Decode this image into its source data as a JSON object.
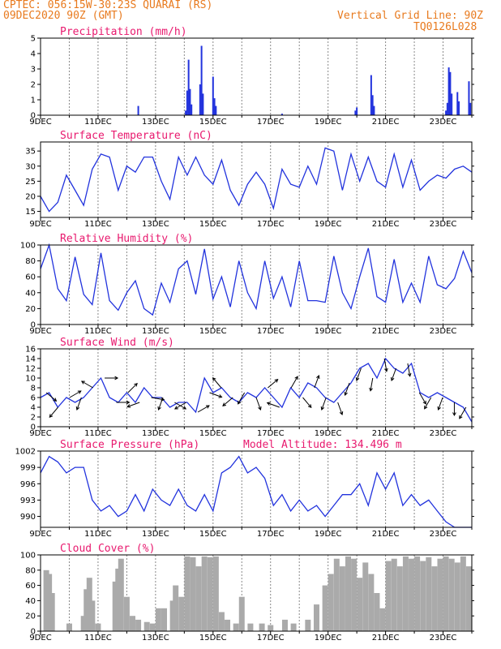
{
  "header": {
    "line1": "CPTEC:   056:15W-30:23S   QUARAI (RS)",
    "line2": "09DEC2020 90Z (GMT)",
    "grid_note": "Vertical Grid Line: 90Z",
    "code": "TQ0126L028"
  },
  "colors": {
    "header": "#e87a1e",
    "title": "#e8196e",
    "series": "#2233dd",
    "cloud": "#aaaaaa",
    "grid": "#888888"
  },
  "x_labels": [
    "9DEC",
    "11DEC",
    "13DEC",
    "15DEC",
    "17DEC",
    "19DEC",
    "21DEC",
    "23DEC"
  ],
  "chart_data": [
    {
      "type": "bar",
      "title": "Precipitation (mm/h)",
      "ylim": [
        0,
        5
      ],
      "yticks": [
        0,
        1,
        2,
        3,
        4,
        5
      ],
      "x_unit": "days since 9DEC",
      "xlim": [
        0,
        15
      ],
      "values": [
        [
          3.4,
          0.6
        ],
        [
          5.05,
          0.3
        ],
        [
          5.1,
          1.6
        ],
        [
          5.15,
          3.6
        ],
        [
          5.2,
          1.7
        ],
        [
          5.25,
          0.7
        ],
        [
          5.55,
          2.0
        ],
        [
          5.6,
          4.5
        ],
        [
          5.65,
          1.4
        ],
        [
          6.0,
          2.5
        ],
        [
          6.05,
          1.1
        ],
        [
          6.1,
          0.6
        ],
        [
          8.4,
          0.1
        ],
        [
          10.95,
          0.3
        ],
        [
          11.0,
          0.5
        ],
        [
          11.5,
          2.6
        ],
        [
          11.55,
          1.3
        ],
        [
          11.6,
          0.6
        ],
        [
          14.1,
          0.3
        ],
        [
          14.15,
          0.8
        ],
        [
          14.2,
          3.1
        ],
        [
          14.25,
          2.8
        ],
        [
          14.3,
          1.4
        ],
        [
          14.5,
          1.5
        ],
        [
          14.55,
          0.9
        ],
        [
          14.9,
          2.2
        ],
        [
          14.95,
          0.8
        ]
      ]
    },
    {
      "type": "line",
      "title": "Surface Temperature (nC)",
      "ylim": [
        13,
        38
      ],
      "yticks": [
        15,
        20,
        25,
        30,
        35
      ],
      "x": [
        0,
        0.3,
        0.6,
        0.9,
        1.2,
        1.5,
        1.8,
        2.1,
        2.4,
        2.7,
        3.0,
        3.3,
        3.6,
        3.9,
        4.2,
        4.5,
        4.8,
        5.1,
        5.4,
        5.7,
        6.0,
        6.3,
        6.6,
        6.9,
        7.2,
        7.5,
        7.8,
        8.1,
        8.4,
        8.7,
        9.0,
        9.3,
        9.6,
        9.9,
        10.2,
        10.5,
        10.8,
        11.1,
        11.4,
        11.7,
        12.0,
        12.3,
        12.6,
        12.9,
        13.2,
        13.5,
        13.8,
        14.1,
        14.4,
        14.7,
        15.0
      ],
      "values": [
        20,
        15,
        18,
        27,
        22,
        17,
        29,
        34,
        33,
        22,
        30,
        28,
        33,
        33,
        25,
        19,
        33,
        27,
        33,
        27,
        24,
        32,
        22,
        17,
        24,
        28,
        24,
        16,
        29,
        24,
        23,
        30,
        24,
        36,
        35,
        22,
        34,
        25,
        33,
        25,
        23,
        34,
        23,
        32,
        22,
        25,
        27,
        26,
        29,
        30,
        28
      ]
    },
    {
      "type": "line",
      "title": "Relative Humidity (%)",
      "ylim": [
        0,
        100
      ],
      "yticks": [
        0,
        20,
        40,
        60,
        80,
        100
      ],
      "x": [
        0,
        0.3,
        0.6,
        0.9,
        1.2,
        1.5,
        1.8,
        2.1,
        2.4,
        2.7,
        3.0,
        3.3,
        3.6,
        3.9,
        4.2,
        4.5,
        4.8,
        5.1,
        5.4,
        5.7,
        6.0,
        6.3,
        6.6,
        6.9,
        7.2,
        7.5,
        7.8,
        8.1,
        8.4,
        8.7,
        9.0,
        9.3,
        9.6,
        9.9,
        10.2,
        10.5,
        10.8,
        11.1,
        11.4,
        11.7,
        12.0,
        12.3,
        12.6,
        12.9,
        13.2,
        13.5,
        13.8,
        14.1,
        14.4,
        14.7,
        15.0
      ],
      "values": [
        70,
        100,
        45,
        30,
        85,
        38,
        25,
        90,
        30,
        18,
        40,
        55,
        20,
        12,
        52,
        28,
        70,
        80,
        38,
        95,
        32,
        60,
        22,
        80,
        40,
        20,
        80,
        33,
        60,
        22,
        80,
        30,
        30,
        28,
        86,
        40,
        20,
        60,
        96,
        35,
        28,
        82,
        28,
        52,
        28,
        86,
        50,
        45,
        58,
        92,
        65
      ]
    },
    {
      "type": "line",
      "title": "Surface Wind (m/s)",
      "ylim": [
        0,
        16
      ],
      "yticks": [
        0,
        2,
        4,
        6,
        8,
        10,
        12,
        14,
        16
      ],
      "x": [
        0,
        0.3,
        0.6,
        0.9,
        1.2,
        1.5,
        1.8,
        2.1,
        2.4,
        2.7,
        3.0,
        3.3,
        3.6,
        3.9,
        4.2,
        4.5,
        4.8,
        5.1,
        5.4,
        5.7,
        6.0,
        6.3,
        6.6,
        6.9,
        7.2,
        7.5,
        7.8,
        8.1,
        8.4,
        8.7,
        9.0,
        9.3,
        9.6,
        9.9,
        10.2,
        10.5,
        10.8,
        11.1,
        11.4,
        11.7,
        12.0,
        12.3,
        12.6,
        12.9,
        13.2,
        13.5,
        13.8,
        14.1,
        14.4,
        14.7,
        15.0
      ],
      "values": [
        6,
        7,
        4,
        6,
        5,
        6,
        8,
        10,
        6,
        5,
        7,
        5,
        8,
        6,
        6,
        4,
        5,
        5,
        3,
        10,
        7,
        8,
        6,
        5,
        7,
        6,
        8,
        6,
        4,
        8,
        6,
        9,
        8,
        6,
        5,
        7,
        9,
        12,
        13,
        10,
        14,
        12,
        11,
        13,
        7,
        6,
        7,
        6,
        5,
        4,
        1
      ],
      "arrow_dirs_deg": [
        130,
        220,
        60,
        200,
        300,
        90,
        90,
        45,
        250,
        100,
        200,
        120,
        240,
        60,
        110,
        320,
        230,
        210,
        160,
        50,
        290,
        30,
        140,
        20,
        200,
        160,
        200,
        200,
        190,
        170,
        200,
        170,
        150,
        210,
        200,
        180,
        210
      ]
    },
    {
      "type": "line",
      "title": "Surface Pressure (hPa)",
      "annotation": "Model Altitude: 134.496 m",
      "ylim": [
        988,
        1002
      ],
      "yticks": [
        990,
        993,
        996,
        999,
        1002
      ],
      "x": [
        0,
        0.3,
        0.6,
        0.9,
        1.2,
        1.5,
        1.8,
        2.1,
        2.4,
        2.7,
        3.0,
        3.3,
        3.6,
        3.9,
        4.2,
        4.5,
        4.8,
        5.1,
        5.4,
        5.7,
        6.0,
        6.3,
        6.6,
        6.9,
        7.2,
        7.5,
        7.8,
        8.1,
        8.4,
        8.7,
        9.0,
        9.3,
        9.6,
        9.9,
        10.2,
        10.5,
        10.8,
        11.1,
        11.4,
        11.7,
        12.0,
        12.3,
        12.6,
        12.9,
        13.2,
        13.5,
        13.8,
        14.1,
        14.4,
        14.7,
        15.0
      ],
      "values": [
        998,
        1001,
        1000,
        998,
        999,
        999,
        993,
        991,
        992,
        990,
        991,
        994,
        991,
        995,
        993,
        992,
        995,
        992,
        991,
        994,
        991,
        998,
        999,
        1001,
        998,
        999,
        997,
        992,
        994,
        991,
        993,
        991,
        992,
        990,
        992,
        994,
        994,
        996,
        992,
        998,
        995,
        998,
        992,
        994,
        992,
        993,
        991,
        989,
        988,
        988,
        988
      ]
    },
    {
      "type": "bar",
      "title": "Cloud Cover (%)",
      "ylim": [
        0,
        100
      ],
      "yticks": [
        0,
        20,
        40,
        60,
        80,
        100
      ],
      "x_unit": "days since 9DEC",
      "xlim": [
        0,
        15
      ],
      "values": [
        [
          0.2,
          80
        ],
        [
          0.3,
          75
        ],
        [
          0.4,
          50
        ],
        [
          1.0,
          10
        ],
        [
          1.5,
          20
        ],
        [
          1.6,
          55
        ],
        [
          1.7,
          70
        ],
        [
          1.8,
          40
        ],
        [
          2.0,
          10
        ],
        [
          2.6,
          65
        ],
        [
          2.7,
          82
        ],
        [
          2.8,
          95
        ],
        [
          3.0,
          45
        ],
        [
          3.2,
          20
        ],
        [
          3.4,
          15
        ],
        [
          3.7,
          12
        ],
        [
          3.9,
          10
        ],
        [
          4.1,
          30
        ],
        [
          4.3,
          30
        ],
        [
          4.6,
          40
        ],
        [
          4.7,
          60
        ],
        [
          4.9,
          45
        ],
        [
          5.1,
          98
        ],
        [
          5.3,
          97
        ],
        [
          5.5,
          85
        ],
        [
          5.7,
          98
        ],
        [
          5.9,
          97
        ],
        [
          6.1,
          98
        ],
        [
          6.3,
          25
        ],
        [
          6.5,
          15
        ],
        [
          6.8,
          10
        ],
        [
          7.0,
          45
        ],
        [
          7.3,
          10
        ],
        [
          7.7,
          10
        ],
        [
          8.0,
          8
        ],
        [
          8.5,
          15
        ],
        [
          8.8,
          10
        ],
        [
          9.3,
          15
        ],
        [
          9.6,
          35
        ],
        [
          9.9,
          60
        ],
        [
          10.1,
          75
        ],
        [
          10.3,
          95
        ],
        [
          10.5,
          85
        ],
        [
          10.7,
          98
        ],
        [
          10.9,
          95
        ],
        [
          11.1,
          70
        ],
        [
          11.3,
          90
        ],
        [
          11.5,
          75
        ],
        [
          11.7,
          50
        ],
        [
          11.9,
          30
        ],
        [
          12.1,
          92
        ],
        [
          12.3,
          95
        ],
        [
          12.5,
          85
        ],
        [
          12.7,
          98
        ],
        [
          12.9,
          95
        ],
        [
          13.1,
          98
        ],
        [
          13.3,
          92
        ],
        [
          13.5,
          97
        ],
        [
          13.7,
          85
        ],
        [
          13.9,
          95
        ],
        [
          14.1,
          98
        ],
        [
          14.3,
          95
        ],
        [
          14.5,
          90
        ],
        [
          14.7,
          98
        ],
        [
          14.9,
          85
        ]
      ]
    }
  ]
}
